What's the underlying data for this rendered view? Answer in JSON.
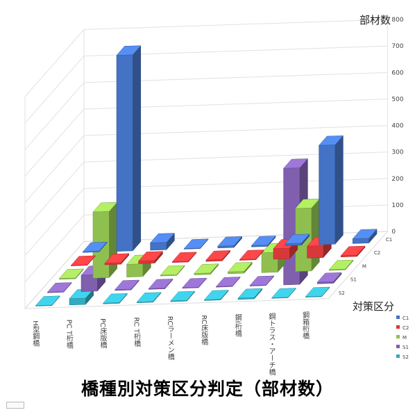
{
  "chart_data": {
    "type": "bar",
    "title": "橋種別対策区分判定（部材数）",
    "zlabel": "部材数",
    "series_axis_label": "対策区分",
    "ylim": [
      0,
      800
    ],
    "yticks": [
      "0",
      "100",
      "200",
      "300",
      "400",
      "500",
      "600",
      "700",
      "800"
    ],
    "grid": true,
    "legend_position": "right",
    "categories": [
      "H型鋼橋",
      "PC T桁橋",
      "PC床版橋",
      "RC T桁橋",
      "RCラーメン橋",
      "RC床版橋",
      "鋼I桁橋",
      "鋼トラス・アーチ橋",
      "鋼箱桁橋"
    ],
    "series": [
      {
        "name": "C1",
        "color": "#4472c4",
        "values": [
          3,
          740,
          28,
          2,
          7,
          5,
          8,
          375,
          18
        ]
      },
      {
        "name": "C2",
        "color": "#d9383a",
        "values": [
          2,
          6,
          10,
          3,
          5,
          3,
          40,
          45,
          5
        ]
      },
      {
        "name": "M",
        "color": "#8fc04f",
        "values": [
          3,
          250,
          48,
          3,
          5,
          7,
          75,
          238,
          3
        ]
      },
      {
        "name": "S1",
        "color": "#7f5fae",
        "values": [
          2,
          62,
          3,
          3,
          2,
          2,
          1,
          440,
          6
        ]
      },
      {
        "name": "S2",
        "color": "#33aabf",
        "values": [
          1,
          24,
          3,
          3,
          3,
          3,
          5,
          1,
          2
        ]
      }
    ]
  }
}
